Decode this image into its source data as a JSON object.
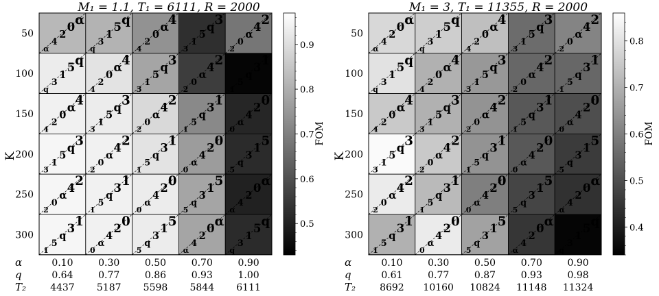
{
  "chart_data": [
    {
      "type": "heatmap",
      "title": "M₁ = 1.1, T₁ = 6111, R = 2000",
      "ylabel": "K",
      "rows": [
        "50",
        "100",
        "150",
        "200",
        "250",
        "300"
      ],
      "cols": [
        {
          "alpha": "0.10",
          "q": "0.64",
          "T2": "4437"
        },
        {
          "alpha": "0.30",
          "q": "0.77",
          "T2": "5187"
        },
        {
          "alpha": "0.50",
          "q": "0.86",
          "T2": "5598"
        },
        {
          "alpha": "0.70",
          "q": "0.93",
          "T2": "5844"
        },
        {
          "alpha": "0.90",
          "q": "1.00",
          "T2": "6111"
        }
      ],
      "row_labels_bottom": [
        "α",
        "q",
        "T₂"
      ],
      "fom": [
        [
          0.82,
          0.81,
          0.74,
          0.53,
          0.68
        ],
        [
          0.93,
          0.91,
          0.78,
          0.56,
          0.44
        ],
        [
          0.94,
          0.93,
          0.89,
          0.72,
          0.51
        ],
        [
          0.95,
          0.94,
          0.91,
          0.76,
          0.52
        ],
        [
          0.95,
          0.94,
          0.93,
          0.78,
          0.5
        ],
        [
          0.95,
          0.94,
          0.93,
          0.78,
          0.52
        ]
      ],
      "colorbar": {
        "label": "FOM",
        "range": [
          0.43,
          0.97
        ],
        "ticks": [
          0.5,
          0.6,
          0.7,
          0.8,
          0.9
        ]
      }
    },
    {
      "type": "heatmap",
      "title": "M₁ = 3, T₁ = 11355, R = 2000",
      "ylabel": "K",
      "rows": [
        "50",
        "100",
        "150",
        "200",
        "250",
        "300"
      ],
      "cols": [
        {
          "alpha": "0.10",
          "q": "0.61",
          "T2": "8692"
        },
        {
          "alpha": "0.30",
          "q": "0.77",
          "T2": "10160"
        },
        {
          "alpha": "0.50",
          "q": "0.87",
          "T2": "10824"
        },
        {
          "alpha": "0.70",
          "q": "0.93",
          "T2": "11148"
        },
        {
          "alpha": "0.90",
          "q": "0.98",
          "T2": "11324"
        }
      ],
      "row_labels_bottom": [
        "α",
        "q",
        "T₂"
      ],
      "fom": [
        [
          0.78,
          0.76,
          0.73,
          0.56,
          0.61
        ],
        [
          0.8,
          0.7,
          0.65,
          0.55,
          0.55
        ],
        [
          0.75,
          0.7,
          0.64,
          0.52,
          0.5
        ],
        [
          0.85,
          0.75,
          0.64,
          0.52,
          0.46
        ],
        [
          0.82,
          0.72,
          0.6,
          0.48,
          0.44
        ],
        [
          0.7,
          0.82,
          0.67,
          0.45,
          0.35
        ]
      ],
      "colorbar": {
        "label": "FOM",
        "range": [
          0.34,
          0.86
        ],
        "ticks": [
          0.4,
          0.5,
          0.6,
          0.7,
          0.8
        ]
      }
    }
  ]
}
